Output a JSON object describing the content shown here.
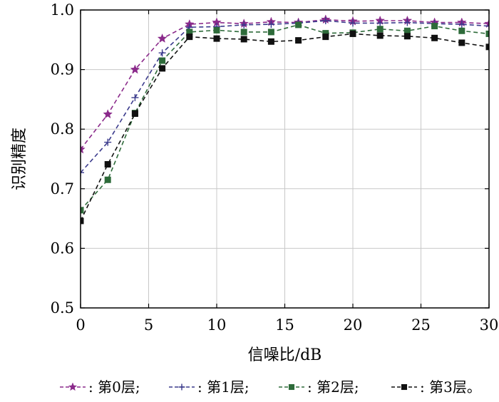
{
  "chart_data": {
    "type": "line",
    "xlabel": "信噪比/dB",
    "ylabel": "识别精度",
    "xlim": [
      0,
      30
    ],
    "ylim": [
      0.5,
      1.0
    ],
    "xticks": [
      0,
      5,
      10,
      15,
      20,
      25,
      30
    ],
    "yticks": [
      0.5,
      0.6,
      0.7,
      0.8,
      0.9,
      1.0
    ],
    "grid": true,
    "legend_position": "bottom",
    "x": [
      0,
      2,
      4,
      6,
      8,
      10,
      12,
      14,
      16,
      18,
      20,
      22,
      24,
      26,
      28,
      30
    ],
    "series": [
      {
        "name": "第0层",
        "legend_label": "- - ★- - : 第0层;",
        "marker": "star",
        "color": "#8B2A8B",
        "values": [
          0.766,
          0.825,
          0.9,
          0.952,
          0.976,
          0.979,
          0.977,
          0.98,
          0.979,
          0.984,
          0.981,
          0.982,
          0.982,
          0.979,
          0.979,
          0.977
        ]
      },
      {
        "name": "第1层",
        "legend_label": "- - +- - : 第1层;",
        "marker": "plus",
        "color": "#3A3A8C",
        "values": [
          0.727,
          0.778,
          0.853,
          0.928,
          0.971,
          0.972,
          0.975,
          0.976,
          0.978,
          0.982,
          0.978,
          0.978,
          0.979,
          0.977,
          0.976,
          0.973
        ]
      },
      {
        "name": "第2层",
        "legend_label": "- - ■- - : 第2层;",
        "marker": "square",
        "color": "#2E6B3A",
        "values": [
          0.664,
          0.715,
          0.827,
          0.915,
          0.963,
          0.966,
          0.963,
          0.963,
          0.975,
          0.961,
          0.962,
          0.968,
          0.965,
          0.973,
          0.965,
          0.96
        ]
      },
      {
        "name": "第3层",
        "legend_label": "- - ■- - : 第3层。",
        "marker": "square",
        "color": "#111111",
        "values": [
          0.646,
          0.741,
          0.826,
          0.902,
          0.955,
          0.952,
          0.951,
          0.947,
          0.949,
          0.955,
          0.96,
          0.957,
          0.956,
          0.953,
          0.945,
          0.938
        ]
      }
    ]
  }
}
